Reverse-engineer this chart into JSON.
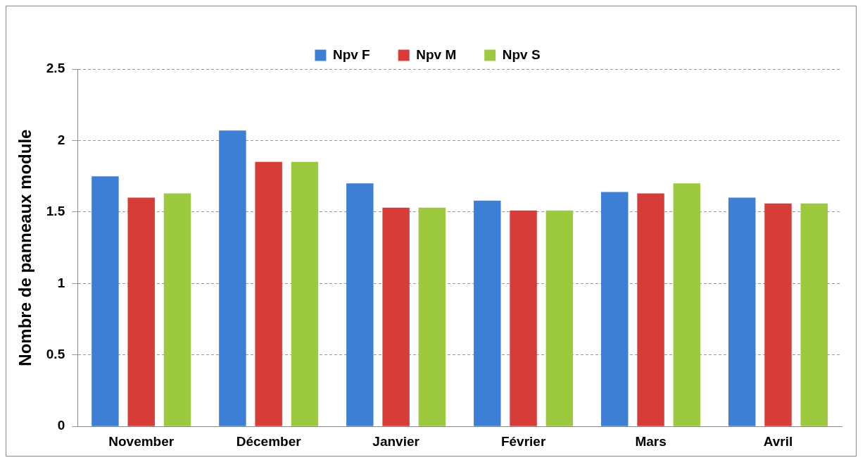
{
  "chart_data": {
    "type": "bar",
    "ylabel": "Nombre de panneaux module",
    "categories": [
      "November",
      "Décember",
      "Janvier",
      "Février",
      "Mars",
      "Avril"
    ],
    "series": [
      {
        "name": "Npv F",
        "color": "#3c7fd4",
        "values": [
          1.75,
          2.07,
          1.7,
          1.58,
          1.64,
          1.6
        ]
      },
      {
        "name": "Npv M",
        "color": "#d63c38",
        "values": [
          1.6,
          1.85,
          1.53,
          1.51,
          1.63,
          1.56
        ]
      },
      {
        "name": "Npv S",
        "color": "#9cc93e",
        "values": [
          1.63,
          1.85,
          1.53,
          1.51,
          1.7,
          1.56
        ]
      }
    ],
    "ylim": [
      0,
      2.5
    ],
    "yticks": [
      0,
      0.5,
      1,
      1.5,
      2,
      2.5
    ],
    "grid": "y",
    "legend": "top"
  }
}
